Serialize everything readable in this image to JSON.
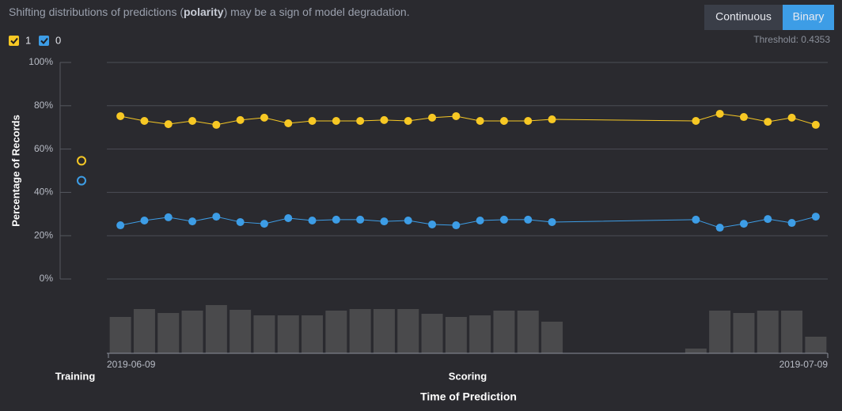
{
  "chart_data": {
    "type": "line",
    "note": [
      "Shifting distributions of predictions (",
      "polarity",
      ") may be a sign of model degradation."
    ],
    "buttons": [
      {
        "label": "Continuous",
        "active": false
      },
      {
        "label": "Binary",
        "active": true
      }
    ],
    "threshold_label": "Threshold: 0.4353",
    "ylabel": "Percentage of Records",
    "xlabel": "Time of Prediction",
    "training_label": "Training",
    "scoring_label": "Scoring",
    "ylim": [
      0,
      100
    ],
    "yticks": [
      {
        "value": 0,
        "label": "0%"
      },
      {
        "value": 20,
        "label": "20%"
      },
      {
        "value": 40,
        "label": "40%"
      },
      {
        "value": 60,
        "label": "60%"
      },
      {
        "value": 80,
        "label": "80%"
      },
      {
        "value": 100,
        "label": "100%"
      }
    ],
    "xlim": [
      "2019-06-09",
      "2019-07-09"
    ],
    "xticks": [
      "2019-06-09",
      "2019-07-09"
    ],
    "x": [
      "2019-06-09",
      "2019-06-10",
      "2019-06-11",
      "2019-06-12",
      "2019-06-13",
      "2019-06-14",
      "2019-06-15",
      "2019-06-16",
      "2019-06-17",
      "2019-06-18",
      "2019-06-19",
      "2019-06-20",
      "2019-06-21",
      "2019-06-22",
      "2019-06-23",
      "2019-06-24",
      "2019-06-25",
      "2019-06-26",
      "2019-06-27",
      "2019-07-03",
      "2019-07-04",
      "2019-07-05",
      "2019-07-06",
      "2019-07-07",
      "2019-07-08"
    ],
    "series": [
      {
        "name": "1",
        "color": "#f7c824",
        "training": 54.6,
        "values": [
          75.2,
          73.0,
          71.5,
          73.0,
          71.2,
          73.4,
          74.5,
          71.9,
          73.0,
          73.0,
          73.0,
          73.4,
          73.0,
          74.5,
          75.2,
          73.0,
          73.0,
          73.0,
          73.7,
          73.0,
          76.3,
          74.8,
          72.6,
          74.5,
          71.2
        ]
      },
      {
        "name": "0",
        "color": "#3d9de6",
        "training": 45.4,
        "values": [
          24.8,
          27.0,
          28.5,
          26.6,
          28.8,
          26.3,
          25.5,
          28.1,
          27.0,
          27.4,
          27.4,
          26.6,
          27.0,
          25.2,
          24.8,
          27.0,
          27.4,
          27.4,
          26.3,
          27.4,
          23.7,
          25.5,
          27.7,
          25.9,
          28.8
        ]
      }
    ],
    "record_counts": [
      46,
      56,
      51,
      54,
      61,
      55,
      48,
      48,
      48,
      54,
      56,
      56,
      56,
      50,
      46,
      48,
      54,
      54,
      40,
      6,
      54,
      51,
      54,
      54,
      21
    ],
    "count_color": "#4a4a4c",
    "grid": true
  }
}
